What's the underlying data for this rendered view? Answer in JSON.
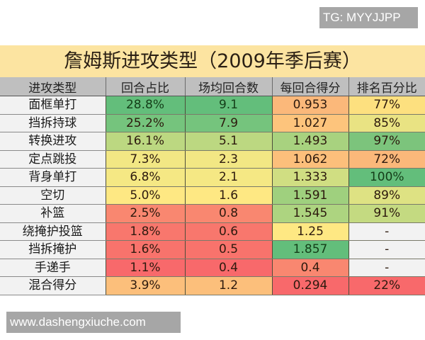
{
  "watermarks": {
    "top_right": "TG: MYYJJPP",
    "bottom_left": "www.dashengxiuche.com"
  },
  "table": {
    "title": "詹姆斯进攻类型（2009年季后赛）",
    "headers": [
      "进攻类型",
      "回合占比",
      "场均回合数",
      "每回合得分",
      "排名百分比"
    ],
    "rows": [
      {
        "type": "面框单打",
        "share": "28.8%",
        "per_game": "9.1",
        "ppp": "0.953",
        "pct": "77%"
      },
      {
        "type": "挡拆持球",
        "share": "25.2%",
        "per_game": "7.9",
        "ppp": "1.027",
        "pct": "85%"
      },
      {
        "type": "转换进攻",
        "share": "16.1%",
        "per_game": "5.1",
        "ppp": "1.493",
        "pct": "97%"
      },
      {
        "type": "定点跳投",
        "share": "7.3%",
        "per_game": "2.3",
        "ppp": "1.062",
        "pct": "72%"
      },
      {
        "type": "背身单打",
        "share": "6.8%",
        "per_game": "2.1",
        "ppp": "1.333",
        "pct": "100%"
      },
      {
        "type": "空切",
        "share": "5.0%",
        "per_game": "1.6",
        "ppp": "1.591",
        "pct": "89%"
      },
      {
        "type": "补篮",
        "share": "2.5%",
        "per_game": "0.8",
        "ppp": "1.545",
        "pct": "91%"
      },
      {
        "type": "绕掩护投篮",
        "share": "1.8%",
        "per_game": "0.6",
        "ppp": "1.25",
        "pct": "-"
      },
      {
        "type": "挡拆掩护",
        "share": "1.6%",
        "per_game": "0.5",
        "ppp": "1.857",
        "pct": "-"
      },
      {
        "type": "手递手",
        "share": "1.1%",
        "per_game": "0.4",
        "ppp": "0.4",
        "pct": "-"
      },
      {
        "type": "混合得分",
        "share": "3.9%",
        "per_game": "1.2",
        "ppp": "0.294",
        "pct": "22%"
      }
    ],
    "cell_colors": [
      [
        "#63be7b",
        "#63be7b",
        "#fbb87a",
        "#fde07f"
      ],
      [
        "#75c47d",
        "#75c47d",
        "#fdc47c",
        "#e9e383"
      ],
      [
        "#bcd881",
        "#bcd881",
        "#a8d27f",
        "#7cc47c"
      ],
      [
        "#f2e784",
        "#f2e784",
        "#fcbf7b",
        "#fbb87a"
      ],
      [
        "#f5e884",
        "#f5e884",
        "#d0de82",
        "#63be7b"
      ],
      [
        "#fee883",
        "#fee883",
        "#9fd07e",
        "#dee283"
      ],
      [
        "#f98770",
        "#f98770",
        "#add480",
        "#c4da81"
      ],
      [
        "#f8776d",
        "#f8776d",
        "#fee883",
        "#f2f2f2"
      ],
      [
        "#f8736c",
        "#f8736c",
        "#63be7b",
        "#f2f2f2"
      ],
      [
        "#f8696b",
        "#f8696b",
        "#f98770",
        "#f2f2f2"
      ],
      [
        "#fcbf7b",
        "#fcbf7b",
        "#f8696b",
        "#f8696b"
      ]
    ]
  }
}
